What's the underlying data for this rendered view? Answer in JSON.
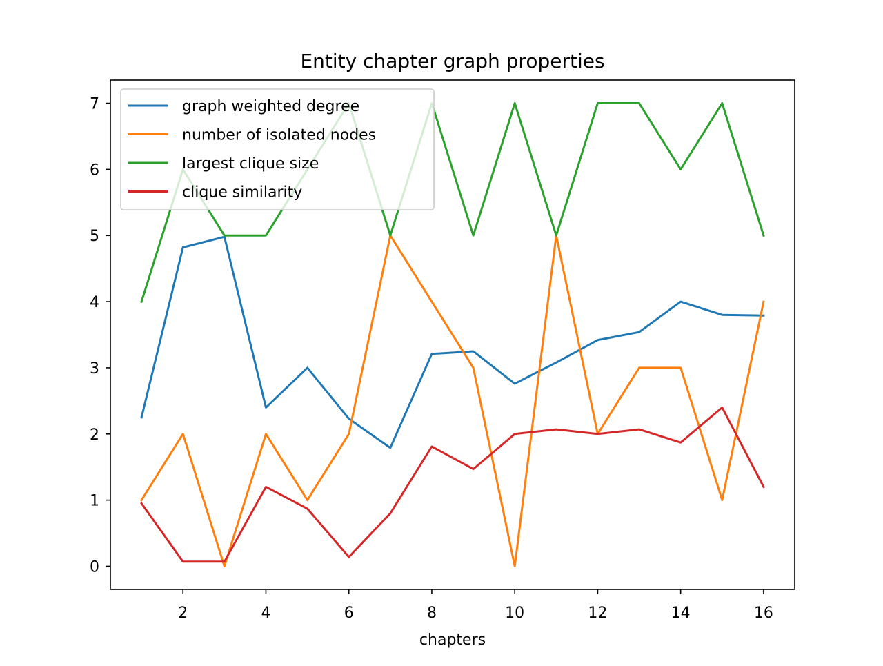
{
  "chart_data": {
    "type": "line",
    "title": "Entity chapter graph properties",
    "xlabel": "chapters",
    "ylabel": "",
    "x": [
      1,
      2,
      3,
      4,
      5,
      6,
      7,
      8,
      9,
      10,
      11,
      12,
      13,
      14,
      15,
      16
    ],
    "xlim": [
      0.25,
      16.75
    ],
    "ylim": [
      -0.35,
      7.35
    ],
    "xticks": [
      2,
      4,
      6,
      8,
      10,
      12,
      14,
      16
    ],
    "yticks": [
      0,
      1,
      2,
      3,
      4,
      5,
      6,
      7
    ],
    "grid": false,
    "legend_position": "upper-left",
    "series": [
      {
        "name": "graph weighted degree",
        "color": "#1f77b4",
        "values": [
          2.25,
          4.82,
          4.98,
          2.4,
          3.0,
          2.23,
          1.79,
          3.21,
          3.25,
          2.76,
          3.08,
          3.42,
          3.54,
          4.0,
          3.8,
          3.79
        ]
      },
      {
        "name": "number of isolated nodes",
        "color": "#ff7f0e",
        "values": [
          1,
          2,
          0,
          2,
          1,
          2,
          5,
          4,
          3,
          0,
          5,
          2,
          3,
          3,
          1,
          4
        ]
      },
      {
        "name": "largest clique size",
        "color": "#2ca02c",
        "values": [
          4,
          6,
          5,
          5,
          6,
          7,
          5,
          7,
          5,
          7,
          5,
          7,
          7,
          6,
          7,
          5
        ]
      },
      {
        "name": "clique similarity",
        "color": "#d62728",
        "values": [
          0.95,
          0.07,
          0.07,
          1.2,
          0.87,
          0.14,
          0.8,
          1.81,
          1.47,
          2.0,
          2.07,
          2.0,
          2.07,
          1.87,
          2.4,
          1.2
        ]
      }
    ]
  }
}
